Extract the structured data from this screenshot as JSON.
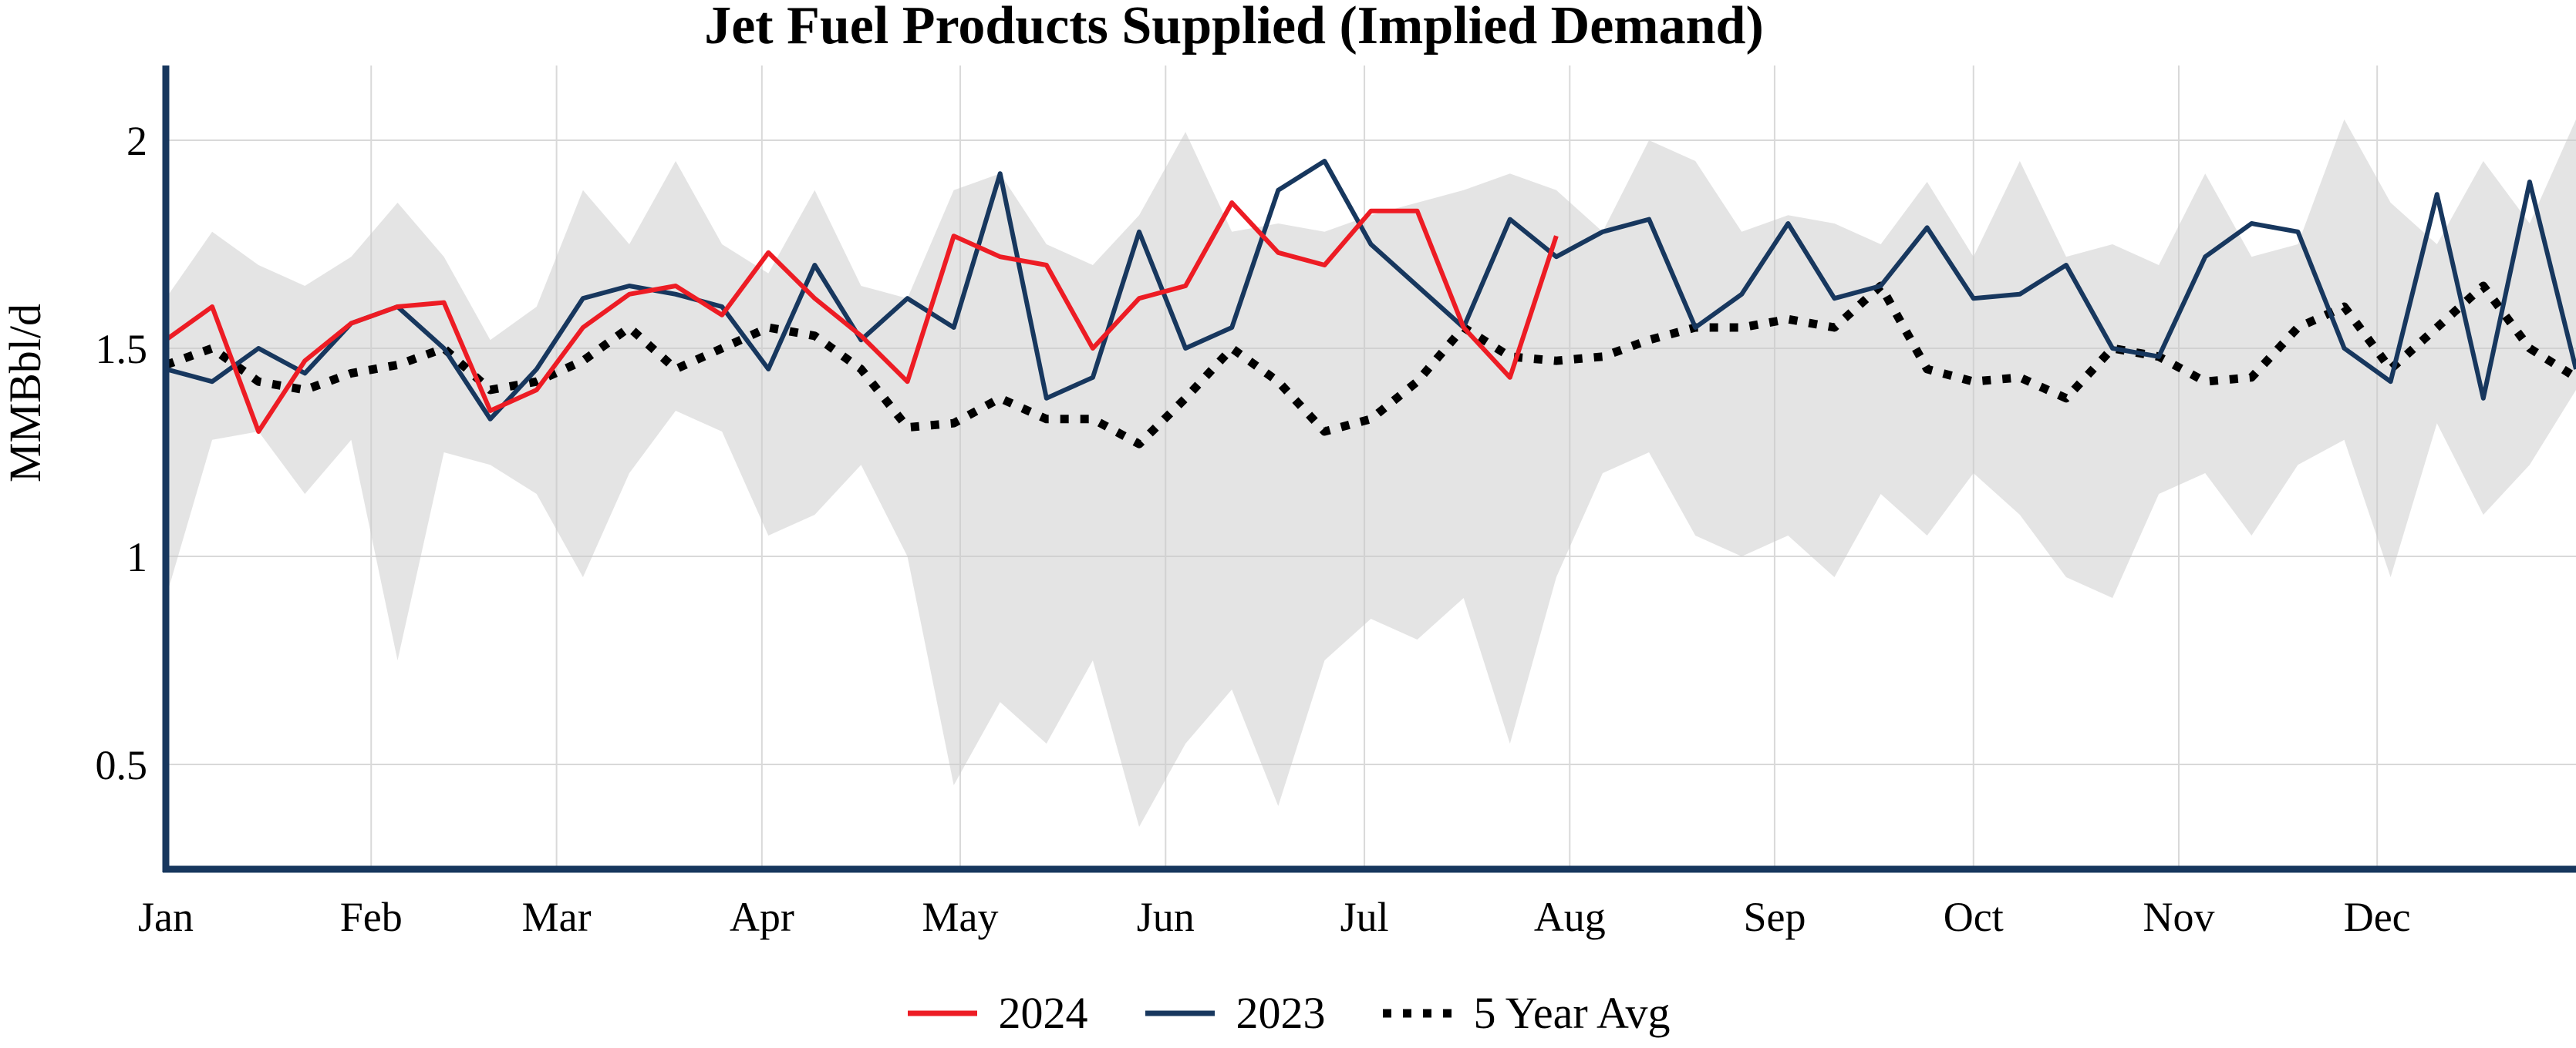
{
  "chart_data": {
    "type": "line",
    "title": "Jet Fuel Products Supplied (Implied Demand)",
    "xlabel": "",
    "ylabel": "MMBbl/d",
    "ylim": [
      0.25,
      2.18
    ],
    "xlim_weeks": [
      0,
      52
    ],
    "x_unit": "week of year (weekly data, Jan-Dec)",
    "grid": true,
    "grid_color": "#d9d9d9",
    "axis_color": "#17375e",
    "background_color": "#ffffff",
    "y_ticks": [
      0.5,
      1,
      1.5,
      2
    ],
    "y_tick_labels": [
      "0.5",
      "1",
      "1.5",
      "2"
    ],
    "x_tick_labels": [
      "Jan",
      "Feb",
      "Mar",
      "Apr",
      "May",
      "Jun",
      "Jul",
      "Aug",
      "Sep",
      "Oct",
      "Nov",
      "Dec"
    ],
    "x_tick_week_positions": [
      0,
      4.43,
      8.43,
      12.86,
      17.14,
      21.57,
      25.86,
      30.29,
      34.71,
      39,
      43.43,
      47.71
    ],
    "legend_position": "bottom-center",
    "band": {
      "name": "5-year range",
      "color": "#c9c9c9",
      "opacity": 0.5,
      "upper": [
        1.62,
        1.78,
        1.7,
        1.65,
        1.72,
        1.85,
        1.72,
        1.52,
        1.6,
        1.88,
        1.75,
        1.95,
        1.75,
        1.68,
        1.88,
        1.65,
        1.62,
        1.88,
        1.92,
        1.75,
        1.7,
        1.82,
        2.02,
        1.78,
        1.8,
        1.78,
        1.82,
        1.85,
        1.88,
        1.92,
        1.88,
        1.78,
        2.0,
        1.95,
        1.78,
        1.82,
        1.8,
        1.75,
        1.9,
        1.72,
        1.95,
        1.72,
        1.75,
        1.7,
        1.92,
        1.72,
        1.75,
        2.05,
        1.85,
        1.75,
        1.95,
        1.8,
        2.05
      ],
      "lower": [
        0.9,
        1.28,
        1.3,
        1.15,
        1.28,
        0.75,
        1.25,
        1.22,
        1.15,
        0.95,
        1.2,
        1.35,
        1.3,
        1.05,
        1.1,
        1.22,
        1.0,
        0.45,
        0.65,
        0.55,
        0.75,
        0.35,
        0.55,
        0.68,
        0.4,
        0.75,
        0.85,
        0.8,
        0.9,
        0.55,
        0.95,
        1.2,
        1.25,
        1.05,
        1.0,
        1.05,
        0.95,
        1.15,
        1.05,
        1.2,
        1.1,
        0.95,
        0.9,
        1.15,
        1.2,
        1.05,
        1.22,
        1.28,
        0.95,
        1.32,
        1.1,
        1.22,
        1.4
      ]
    },
    "series": [
      {
        "name": "2024",
        "color": "#ed1c24",
        "style": "solid",
        "start_week": 0,
        "values": [
          1.52,
          1.6,
          1.3,
          1.47,
          1.56,
          1.6,
          1.61,
          1.35,
          1.4,
          1.55,
          1.63,
          1.65,
          1.58,
          1.73,
          1.62,
          1.53,
          1.42,
          1.77,
          1.72,
          1.7,
          1.5,
          1.62,
          1.65,
          1.85,
          1.73,
          1.7,
          1.83,
          1.83,
          1.55,
          1.43,
          1.77
        ]
      },
      {
        "name": "2023",
        "color": "#17375e",
        "style": "solid",
        "start_week": 0,
        "values": [
          1.45,
          1.42,
          1.5,
          1.44,
          1.56,
          1.6,
          1.5,
          1.33,
          1.45,
          1.62,
          1.65,
          1.63,
          1.6,
          1.45,
          1.7,
          1.52,
          1.62,
          1.55,
          1.92,
          1.38,
          1.43,
          1.78,
          1.5,
          1.55,
          1.88,
          1.95,
          1.75,
          1.65,
          1.55,
          1.81,
          1.72,
          1.78,
          1.81,
          1.55,
          1.63,
          1.8,
          1.62,
          1.65,
          1.79,
          1.62,
          1.63,
          1.7,
          1.5,
          1.48,
          1.72,
          1.8,
          1.78,
          1.5,
          1.42,
          1.87,
          1.38,
          1.9,
          1.45
        ]
      },
      {
        "name": "5 Year Avg",
        "color": "#000000",
        "style": "dotted",
        "start_week": 0,
        "values": [
          1.46,
          1.5,
          1.42,
          1.4,
          1.44,
          1.46,
          1.5,
          1.4,
          1.42,
          1.47,
          1.55,
          1.45,
          1.5,
          1.55,
          1.53,
          1.45,
          1.31,
          1.32,
          1.38,
          1.33,
          1.33,
          1.27,
          1.38,
          1.5,
          1.42,
          1.3,
          1.33,
          1.42,
          1.55,
          1.48,
          1.47,
          1.48,
          1.52,
          1.55,
          1.55,
          1.57,
          1.55,
          1.65,
          1.45,
          1.42,
          1.43,
          1.38,
          1.5,
          1.48,
          1.42,
          1.43,
          1.55,
          1.6,
          1.45,
          1.55,
          1.65,
          1.5,
          1.43
        ]
      }
    ]
  }
}
